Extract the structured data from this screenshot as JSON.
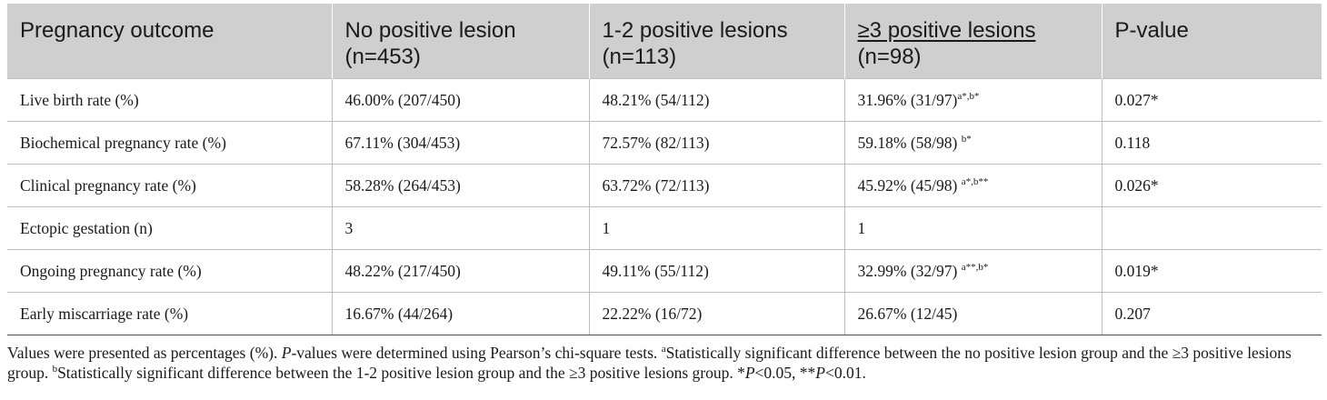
{
  "table": {
    "headers": [
      {
        "line1": "Pregnancy outcome",
        "line2": ""
      },
      {
        "line1": "No positive lesion",
        "line2": "(n=453)"
      },
      {
        "line1": "1-2 positive lesions",
        "line2": "(n=113)"
      },
      {
        "line1": "≥3 positive lesions",
        "line2": "(n=98)"
      },
      {
        "line1": "P-value",
        "line2": ""
      }
    ],
    "rows": [
      {
        "label": "Live birth rate (%)",
        "c1": "46.00% (207/450)",
        "c2": "48.21% (54/112)",
        "c3": "31.96% (31/97)",
        "c3_sup": "a*,b*",
        "p": "0.027*"
      },
      {
        "label": "Biochemical pregnancy rate (%)",
        "c1": "67.11% (304/453)",
        "c2": "72.57% (82/113)",
        "c3": "59.18% (58/98) ",
        "c3_sup": "b*",
        "p": "0.118"
      },
      {
        "label": "Clinical pregnancy rate (%)",
        "c1": "58.28% (264/453)",
        "c2": "63.72% (72/113)",
        "c3": "45.92% (45/98) ",
        "c3_sup": "a*,b**",
        "p": "0.026*"
      },
      {
        "label": "Ectopic gestation (n)",
        "c1": "3",
        "c2": "1",
        "c3": "1",
        "c3_sup": "",
        "p": ""
      },
      {
        "label": "Ongoing pregnancy rate (%)",
        "c1": "48.22% (217/450)",
        "c2": "49.11% (55/112)",
        "c3": "32.99% (32/97) ",
        "c3_sup": "a**,b*",
        "p": "0.019*"
      },
      {
        "label": "Early miscarriage rate (%)",
        "c1": "16.67% (44/264)",
        "c2": "22.22% (16/72)",
        "c3": "26.67% (12/45)",
        "c3_sup": "",
        "p": "0.207"
      }
    ]
  },
  "footnote": {
    "t1": "Values were presented as percentages (%). ",
    "p_italic_1": "P",
    "t2": "-values were determined using Pearson’s chi-square tests. ",
    "sup_a": "a",
    "t3": "Statistically significant difference between the no positive lesion group and the ≥3 positive lesions group. ",
    "sup_b": "b",
    "t4": "Statistically significant difference between the 1-2 positive lesion group and the ≥3 positive lesions group. *",
    "p_italic_2": "P",
    "t5": "<0.05, **",
    "p_italic_3": "P",
    "t6": "<0.01."
  }
}
